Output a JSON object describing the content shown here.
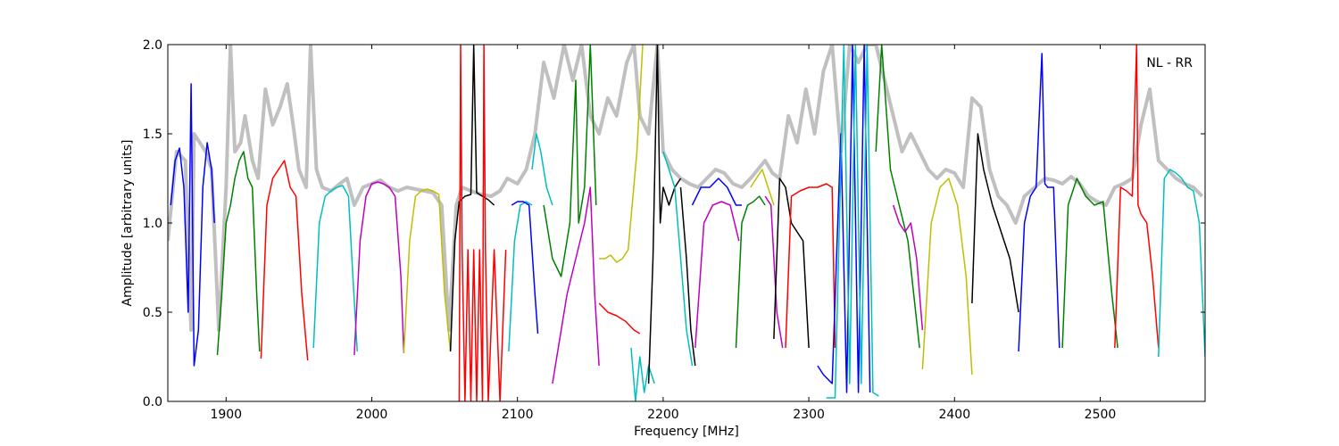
{
  "chart_data": {
    "type": "line",
    "xlabel": "Frequency [MHz]",
    "ylabel": "Amplitude [arbitrary units]",
    "xlim": [
      1860,
      2572
    ],
    "ylim": [
      0.0,
      2.0
    ],
    "xticks": [
      1900,
      2000,
      2100,
      2200,
      2300,
      2400,
      2500
    ],
    "xtick_labels": [
      "1900",
      "2000",
      "2100",
      "2200",
      "2300",
      "2400",
      "2500"
    ],
    "yticks": [
      0.0,
      0.5,
      1.0,
      1.5,
      2.0
    ],
    "ytick_labels": [
      "0.0",
      "0.5",
      "1.0",
      "1.5",
      "2.0"
    ],
    "annotation": "NL - RR",
    "grid": false,
    "envelope_color": "#c0c0c0",
    "colors": {
      "blue": "#0000ff",
      "green": "#008000",
      "red": "#ff0000",
      "cyan": "#00bfbf",
      "magenta": "#bf00bf",
      "olive": "#bfbf00",
      "black": "#000000"
    },
    "envelope": {
      "x": [
        1860,
        1866,
        1872,
        1876,
        1878,
        1882,
        1886,
        1890,
        1895,
        1900,
        1903,
        1906,
        1910,
        1913,
        1918,
        1922,
        1927,
        1932,
        1937,
        1942,
        1946,
        1950,
        1955,
        1958,
        1962,
        1966,
        1972,
        1978,
        1983,
        1988,
        1994,
        2000,
        2006,
        2012,
        2018,
        2024,
        2030,
        2036,
        2042,
        2048,
        2053,
        2058,
        2062,
        2068,
        2075,
        2082,
        2088,
        2093,
        2100,
        2106,
        2112,
        2118,
        2125,
        2132,
        2138,
        2144,
        2150,
        2156,
        2162,
        2168,
        2175,
        2180,
        2184,
        2190,
        2196,
        2200,
        2206,
        2212,
        2218,
        2224,
        2230,
        2236,
        2242,
        2248,
        2254,
        2260,
        2265,
        2270,
        2275,
        2280,
        2286,
        2292,
        2298,
        2304,
        2310,
        2316,
        2322,
        2328,
        2334,
        2340,
        2346,
        2352,
        2358,
        2364,
        2370,
        2376,
        2382,
        2388,
        2394,
        2400,
        2406,
        2412,
        2418,
        2424,
        2430,
        2436,
        2442,
        2448,
        2455,
        2462,
        2468,
        2474,
        2480,
        2486,
        2492,
        2498,
        2504,
        2510,
        2516,
        2522,
        2528,
        2534,
        2540,
        2546,
        2552,
        2558,
        2564,
        2570
      ],
      "y": [
        0.9,
        1.4,
        1.35,
        0.4,
        1.5,
        1.45,
        1.4,
        1.3,
        0.4,
        1.2,
        2.0,
        1.4,
        1.45,
        1.6,
        1.35,
        1.25,
        1.75,
        1.55,
        1.65,
        1.78,
        1.55,
        1.3,
        1.2,
        2.0,
        1.3,
        1.2,
        1.18,
        1.22,
        1.25,
        1.1,
        1.2,
        1.22,
        1.24,
        1.2,
        1.18,
        1.2,
        1.19,
        1.18,
        1.17,
        1.1,
        0.4,
        1.1,
        1.2,
        1.18,
        1.16,
        1.15,
        1.18,
        1.25,
        1.22,
        1.3,
        1.5,
        1.9,
        1.7,
        2.0,
        1.8,
        2.0,
        1.6,
        1.5,
        1.7,
        1.6,
        1.9,
        2.0,
        1.6,
        1.5,
        2.0,
        1.4,
        1.3,
        1.25,
        1.22,
        1.2,
        1.25,
        1.3,
        1.28,
        1.22,
        1.2,
        1.25,
        1.3,
        1.35,
        1.28,
        1.25,
        1.6,
        1.45,
        1.75,
        1.5,
        1.85,
        2.0,
        1.4,
        2.0,
        1.9,
        2.0,
        2.0,
        1.8,
        1.6,
        1.4,
        1.5,
        1.4,
        1.3,
        1.25,
        1.3,
        1.28,
        1.2,
        1.7,
        1.65,
        1.3,
        1.15,
        1.1,
        1.0,
        1.15,
        1.2,
        1.25,
        1.24,
        1.22,
        1.26,
        1.22,
        1.15,
        1.12,
        1.1,
        1.2,
        1.22,
        1.25,
        1.55,
        1.75,
        1.35,
        1.3,
        1.25,
        1.22,
        1.2,
        1.15
      ]
    },
    "series": [
      {
        "color": "blue",
        "x": [
          1862,
          1865,
          1868,
          1871,
          1874,
          1876,
          1878,
          1881,
          1884,
          1887,
          1890,
          1892
        ],
        "y": [
          1.1,
          1.35,
          1.42,
          1.2,
          0.5,
          1.78,
          0.2,
          0.4,
          1.2,
          1.45,
          1.3,
          1.0
        ]
      },
      {
        "color": "green",
        "x": [
          1894,
          1897,
          1900,
          1903,
          1906,
          1909,
          1912,
          1915,
          1918,
          1921,
          1923
        ],
        "y": [
          0.26,
          0.6,
          1.0,
          1.1,
          1.25,
          1.35,
          1.4,
          1.25,
          1.2,
          0.6,
          0.28
        ]
      },
      {
        "color": "red",
        "x": [
          1924,
          1928,
          1932,
          1936,
          1940,
          1944,
          1948,
          1952,
          1956
        ],
        "y": [
          0.24,
          1.1,
          1.25,
          1.3,
          1.35,
          1.2,
          1.15,
          0.6,
          0.23
        ]
      },
      {
        "color": "cyan",
        "x": [
          1960,
          1964,
          1968,
          1972,
          1976,
          1980,
          1984,
          1987,
          1990
        ],
        "y": [
          0.3,
          1.0,
          1.15,
          1.18,
          1.2,
          1.21,
          1.15,
          0.7,
          0.28
        ]
      },
      {
        "color": "magenta",
        "x": [
          1988,
          1992,
          1996,
          2000,
          2004,
          2008,
          2012,
          2016,
          2020,
          2022
        ],
        "y": [
          0.26,
          0.9,
          1.15,
          1.22,
          1.23,
          1.22,
          1.2,
          1.15,
          0.7,
          0.27
        ]
      },
      {
        "color": "olive",
        "x": [
          2022,
          2026,
          2030,
          2034,
          2038,
          2042,
          2046,
          2050,
          2054
        ],
        "y": [
          0.27,
          0.9,
          1.15,
          1.18,
          1.19,
          1.18,
          1.16,
          0.6,
          0.28
        ]
      },
      {
        "color": "black",
        "x": [
          2054,
          2057,
          2060,
          2064,
          2068,
          2070,
          2072,
          2076,
          2080,
          2084
        ],
        "y": [
          0.28,
          0.9,
          1.12,
          1.15,
          1.16,
          2.0,
          1.17,
          1.15,
          1.13,
          1.1
        ]
      },
      {
        "color": "red",
        "x": [
          2060,
          2061,
          2062,
          2064,
          2066,
          2068,
          2070,
          2072,
          2074,
          2076,
          2077,
          2078,
          2080,
          2084,
          2088,
          2092
        ],
        "y": [
          0.0,
          2.0,
          0.85,
          0.0,
          0.85,
          0.0,
          0.85,
          0.0,
          0.85,
          0.0,
          2.0,
          0.85,
          0.0,
          0.85,
          0.0,
          0.85
        ]
      },
      {
        "color": "cyan",
        "x": [
          2094,
          2098,
          2102,
          2106,
          2110
        ],
        "y": [
          0.28,
          0.9,
          1.1,
          1.12,
          1.1
        ]
      },
      {
        "color": "blue",
        "x": [
          2096,
          2100,
          2104,
          2108,
          2112,
          2114
        ],
        "y": [
          1.1,
          1.12,
          1.12,
          1.1,
          0.6,
          0.38
        ]
      },
      {
        "color": "cyan",
        "x": [
          2110,
          2113,
          2116,
          2120,
          2124
        ],
        "y": [
          1.3,
          1.5,
          1.4,
          1.2,
          1.1
        ]
      },
      {
        "color": "green",
        "x": [
          2118,
          2124,
          2130,
          2136,
          2140,
          2142,
          2146,
          2150,
          2154
        ],
        "y": [
          1.1,
          0.8,
          0.7,
          1.0,
          1.8,
          1.0,
          1.2,
          2.0,
          1.1
        ]
      },
      {
        "color": "magenta",
        "x": [
          2124,
          2128,
          2134,
          2140,
          2146,
          2150,
          2153,
          2156
        ],
        "y": [
          0.1,
          0.3,
          0.6,
          0.8,
          1.0,
          1.2,
          0.6,
          0.2
        ]
      },
      {
        "color": "olive",
        "x": [
          2156,
          2160,
          2164,
          2168,
          2172,
          2176,
          2182,
          2186
        ],
        "y": [
          0.8,
          0.8,
          0.82,
          0.78,
          0.8,
          0.85,
          1.4,
          2.0
        ]
      },
      {
        "color": "red",
        "x": [
          2156,
          2162,
          2168,
          2174,
          2180,
          2184
        ],
        "y": [
          0.55,
          0.5,
          0.48,
          0.45,
          0.4,
          0.38
        ]
      },
      {
        "color": "cyan",
        "x": [
          2178,
          2181,
          2184,
          2187,
          2190,
          2194
        ],
        "y": [
          0.3,
          0.0,
          0.25,
          0.05,
          0.2,
          0.1
        ]
      },
      {
        "color": "black",
        "x": [
          2190,
          2193,
          2196,
          2198,
          2200,
          2204,
          2208,
          2212
        ],
        "y": [
          0.1,
          0.8,
          2.0,
          1.0,
          1.2,
          1.1,
          1.2,
          1.25
        ]
      },
      {
        "color": "cyan",
        "x": [
          2200,
          2204,
          2208,
          2212,
          2216,
          2220
        ],
        "y": [
          1.4,
          1.3,
          1.2,
          0.8,
          0.4,
          0.2
        ]
      },
      {
        "color": "black",
        "x": [
          2212,
          2216,
          2219,
          2222
        ],
        "y": [
          1.2,
          0.8,
          0.4,
          0.2
        ]
      },
      {
        "color": "blue",
        "x": [
          2220,
          2226,
          2232,
          2238,
          2244,
          2250,
          2254
        ],
        "y": [
          1.1,
          1.2,
          1.2,
          1.25,
          1.2,
          1.1,
          1.1
        ]
      },
      {
        "color": "magenta",
        "x": [
          2222,
          2228,
          2234,
          2240,
          2246,
          2252
        ],
        "y": [
          0.3,
          1.0,
          1.1,
          1.12,
          1.1,
          0.9
        ]
      },
      {
        "color": "green",
        "x": [
          2250,
          2254,
          2258,
          2262,
          2266,
          2270
        ],
        "y": [
          0.3,
          1.0,
          1.1,
          1.12,
          1.15,
          1.1
        ]
      },
      {
        "color": "olive",
        "x": [
          2260,
          2264,
          2268,
          2272,
          2276
        ],
        "y": [
          1.2,
          1.25,
          1.3,
          1.2,
          1.1
        ]
      },
      {
        "color": "magenta",
        "x": [
          2270,
          2274,
          2278,
          2282
        ],
        "y": [
          1.15,
          1.1,
          0.5,
          0.3
        ]
      },
      {
        "color": "black",
        "x": [
          2276,
          2280,
          2284,
          2288,
          2292,
          2296,
          2300
        ],
        "y": [
          0.35,
          1.25,
          1.2,
          1.0,
          0.95,
          0.9,
          0.3
        ]
      },
      {
        "color": "red",
        "x": [
          2284,
          2288,
          2294,
          2300,
          2306,
          2312,
          2316,
          2318
        ],
        "y": [
          0.3,
          1.15,
          1.18,
          1.2,
          1.2,
          1.22,
          1.2,
          0.3
        ]
      },
      {
        "color": "blue",
        "x": [
          2306,
          2310,
          2316,
          2322,
          2326,
          2330,
          2334,
          2338,
          2342
        ],
        "y": [
          0.2,
          0.15,
          0.1,
          1.5,
          0.05,
          2.0,
          0.05,
          2.0,
          0.05
        ]
      },
      {
        "color": "cyan",
        "x": [
          2312,
          2318,
          2324,
          2328,
          2332,
          2336,
          2340,
          2344,
          2348
        ],
        "y": [
          0.02,
          0.02,
          2.0,
          0.1,
          2.0,
          0.1,
          2.0,
          0.05,
          0.03
        ]
      },
      {
        "color": "green",
        "x": [
          2346,
          2350,
          2356,
          2362,
          2368,
          2372,
          2376
        ],
        "y": [
          1.4,
          2.0,
          1.3,
          1.1,
          0.9,
          0.6,
          0.3
        ]
      },
      {
        "color": "magenta",
        "x": [
          2358,
          2362,
          2366,
          2370,
          2374,
          2378
        ],
        "y": [
          1.1,
          1.0,
          0.95,
          1.0,
          0.8,
          0.4
        ]
      },
      {
        "color": "olive",
        "x": [
          2378,
          2384,
          2390,
          2396,
          2402,
          2408,
          2412
        ],
        "y": [
          0.18,
          1.0,
          1.2,
          1.25,
          1.1,
          0.7,
          0.15
        ]
      },
      {
        "color": "black",
        "x": [
          2412,
          2416,
          2420,
          2426,
          2432,
          2438,
          2444
        ],
        "y": [
          0.55,
          1.5,
          1.3,
          1.1,
          0.95,
          0.8,
          0.5
        ]
      },
      {
        "color": "blue",
        "x": [
          2444,
          2448,
          2452,
          2456,
          2460,
          2462,
          2464,
          2468,
          2472
        ],
        "y": [
          0.28,
          1.0,
          1.15,
          1.2,
          1.95,
          1.22,
          1.2,
          1.2,
          0.3
        ]
      },
      {
        "color": "green",
        "x": [
          2474,
          2478,
          2484,
          2490,
          2496,
          2502,
          2508,
          2512
        ],
        "y": [
          0.3,
          1.1,
          1.25,
          1.15,
          1.1,
          1.12,
          0.6,
          0.3
        ]
      },
      {
        "color": "red",
        "x": [
          2510,
          2514,
          2518,
          2522,
          2525,
          2526,
          2528,
          2532,
          2536,
          2540
        ],
        "y": [
          0.3,
          1.2,
          1.18,
          1.15,
          2.0,
          1.1,
          1.05,
          1.0,
          0.7,
          0.3
        ]
      },
      {
        "color": "cyan",
        "x": [
          2540,
          2544,
          2548,
          2552,
          2556,
          2560,
          2564,
          2568,
          2572
        ],
        "y": [
          0.25,
          1.25,
          1.3,
          1.28,
          1.25,
          1.2,
          1.18,
          1.0,
          0.25
        ]
      }
    ]
  }
}
